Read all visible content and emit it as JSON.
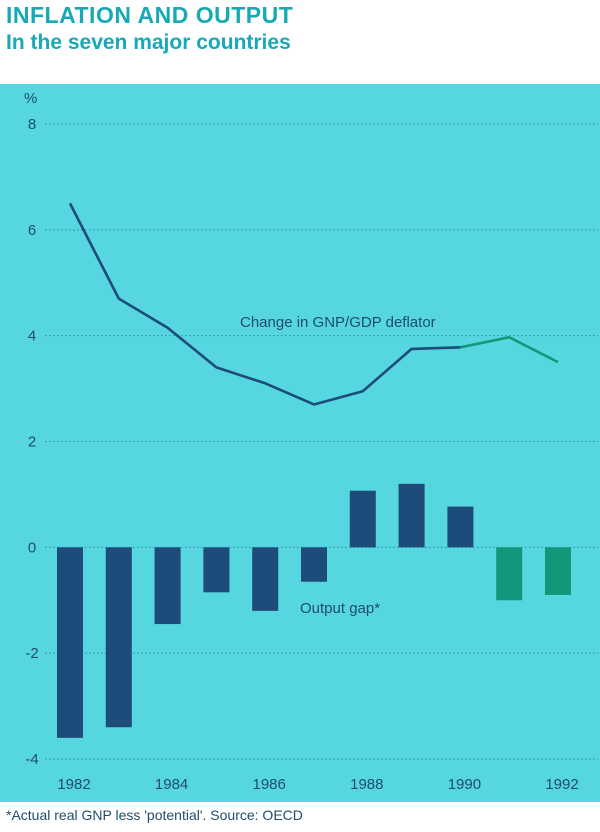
{
  "header": {
    "title": "INFLATION AND OUTPUT",
    "subtitle": "In the seven major countries"
  },
  "footnote": "*Actual real GNP less 'potential'. Source: OECD",
  "colors": {
    "background": "#56d6de",
    "actual": "#1d4b7a",
    "projection": "#12977a",
    "title": "#17a9b5",
    "grid": "#2c8c98",
    "text": "#1f4d6b"
  },
  "chart_data": {
    "type": "bar+line",
    "unit_label": "%",
    "ylim": [
      -4,
      8
    ],
    "yticks": [
      -4,
      -2,
      0,
      2,
      4,
      6,
      8
    ],
    "x": [
      1982,
      1983,
      1984,
      1985,
      1986,
      1987,
      1988,
      1989,
      1990,
      1991,
      1992
    ],
    "xtick_labels": [
      "1982",
      "1984",
      "1986",
      "1988",
      "1990",
      "1992"
    ],
    "grid": true,
    "series": [
      {
        "name": "Change in GNP/GDP deflator",
        "kind": "line",
        "values": [
          6.5,
          4.7,
          4.15,
          3.4,
          3.1,
          2.7,
          2.95,
          3.75,
          3.78,
          3.97,
          3.5
        ],
        "projection_from": 1990
      },
      {
        "name": "Output gap*",
        "kind": "bar",
        "values": [
          -3.6,
          -3.4,
          -1.45,
          -0.85,
          -1.2,
          -0.65,
          1.07,
          1.2,
          0.77,
          -1.0,
          -0.9
        ],
        "projection_from": 1991
      }
    ]
  }
}
